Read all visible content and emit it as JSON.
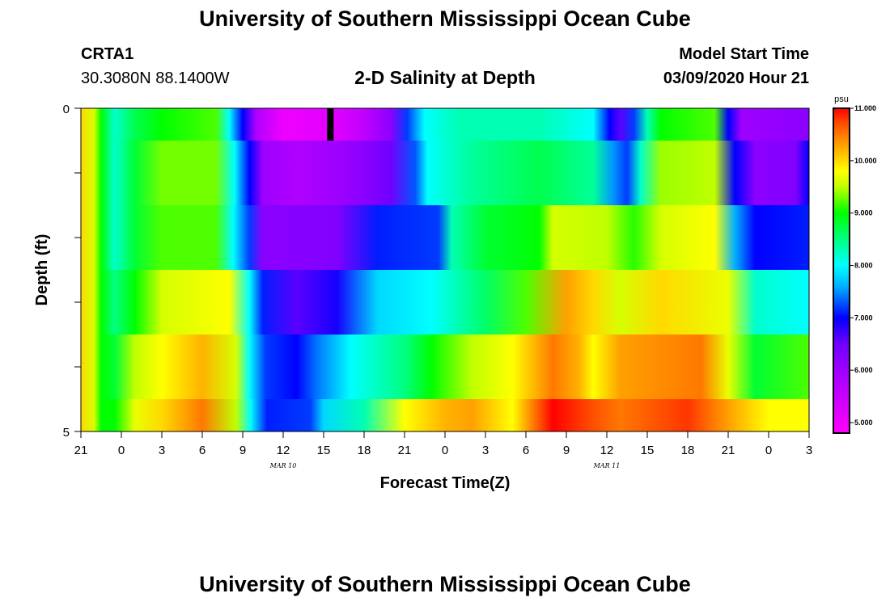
{
  "header": {
    "main_title": "University of Southern Mississippi Ocean Cube",
    "footer_title": "University of Southern Mississippi Ocean Cube",
    "station_id": "CRTA1",
    "station_coords": "30.3080N 88.1400W",
    "plot_title": "2-D Salinity at Depth",
    "model_start_label": "Model Start Time",
    "model_start_value": "03/09/2020 Hour 21"
  },
  "chart_data": {
    "type": "heatmap",
    "title": "2-D Salinity at Depth",
    "xlabel": "Forecast Time(Z)",
    "ylabel": "Depth (ft)",
    "x_tick_labels": [
      "21",
      "0",
      "3",
      "6",
      "9",
      "12",
      "15",
      "18",
      "21",
      "0",
      "3",
      "6",
      "9",
      "12",
      "15",
      "18",
      "21",
      "0",
      "3"
    ],
    "x_date_labels": [
      {
        "text": "MAR  10",
        "at_tick": 5
      },
      {
        "text": "MAR  11",
        "at_tick": 13
      }
    ],
    "y_tick_labels": {
      "top": "0",
      "bottom": "5"
    },
    "ylim": [
      0,
      5
    ],
    "forecast_hours": [
      0,
      54
    ],
    "colorbar": {
      "unit": "psu",
      "min": 4.8,
      "max": 11.0,
      "tick_labels": [
        "11.000",
        "10.000",
        "9.000",
        "8.000",
        "7.000",
        "6.000",
        "5.000"
      ],
      "tick_values": [
        11,
        10,
        9,
        8,
        7,
        6,
        5
      ],
      "stops": [
        {
          "value": 4.8,
          "color": "#ff00ff"
        },
        {
          "value": 5.8,
          "color": "#b000ff"
        },
        {
          "value": 6.5,
          "color": "#7000ff"
        },
        {
          "value": 7.0,
          "color": "#0000ff"
        },
        {
          "value": 7.6,
          "color": "#00b0ff"
        },
        {
          "value": 8.0,
          "color": "#00ffff"
        },
        {
          "value": 8.5,
          "color": "#00ff80"
        },
        {
          "value": 9.0,
          "color": "#00ff00"
        },
        {
          "value": 9.5,
          "color": "#c0ff00"
        },
        {
          "value": 9.8,
          "color": "#ffff00"
        },
        {
          "value": 10.3,
          "color": "#ffa000"
        },
        {
          "value": 10.7,
          "color": "#ff5000"
        },
        {
          "value": 11.0,
          "color": "#ff0000"
        }
      ]
    },
    "depth_rows": [
      {
        "depth_range": [
          0.0,
          0.5
        ],
        "knots": [
          [
            0,
            10
          ],
          [
            1,
            9.6
          ],
          [
            1.5,
            9.0
          ],
          [
            2.5,
            8.2
          ],
          [
            4,
            8.7
          ],
          [
            6,
            9.0
          ],
          [
            10,
            9.2
          ],
          [
            11,
            8.0
          ],
          [
            12,
            7.0
          ],
          [
            13,
            5.8
          ],
          [
            15,
            5.0
          ],
          [
            19,
            5.2
          ],
          [
            21,
            5.6
          ],
          [
            23,
            6.2
          ],
          [
            24.2,
            7.2
          ],
          [
            25.5,
            8.0
          ],
          [
            28,
            8.3
          ],
          [
            34,
            8.3
          ],
          [
            38,
            8.0
          ],
          [
            39.2,
            7.0
          ],
          [
            40,
            6.6
          ],
          [
            41,
            7.2
          ],
          [
            42,
            8.3
          ],
          [
            43,
            9.0
          ],
          [
            47,
            9.2
          ],
          [
            48,
            7.0
          ],
          [
            49,
            6.0
          ],
          [
            54,
            6.2
          ]
        ]
      },
      {
        "depth_range": [
          0.5,
          1.5
        ],
        "knots": [
          [
            0,
            10
          ],
          [
            1,
            9.6
          ],
          [
            1.5,
            9.0
          ],
          [
            2.5,
            8.2
          ],
          [
            4,
            8.8
          ],
          [
            6,
            9.3
          ],
          [
            10,
            9.3
          ],
          [
            11.4,
            8.0
          ],
          [
            12.5,
            7.0
          ],
          [
            13.5,
            6.0
          ],
          [
            16,
            5.8
          ],
          [
            19,
            6.0
          ],
          [
            21,
            6.2
          ],
          [
            23,
            6.5
          ],
          [
            24.8,
            7.3
          ],
          [
            25.7,
            8.0
          ],
          [
            29,
            8.4
          ],
          [
            34,
            8.7
          ],
          [
            38,
            8.4
          ],
          [
            39.5,
            7.5
          ],
          [
            40.5,
            7.2
          ],
          [
            41.5,
            8.2
          ],
          [
            43,
            9.4
          ],
          [
            47,
            9.5
          ],
          [
            48.5,
            7.0
          ],
          [
            50,
            6.2
          ],
          [
            53,
            6.3
          ],
          [
            54,
            7.0
          ]
        ]
      },
      {
        "depth_range": [
          1.5,
          2.5
        ],
        "knots": [
          [
            0,
            10
          ],
          [
            1,
            9.6
          ],
          [
            1.5,
            9.0
          ],
          [
            2.5,
            8.2
          ],
          [
            4,
            8.8
          ],
          [
            6,
            9.2
          ],
          [
            10,
            9.2
          ],
          [
            11.3,
            8.0
          ],
          [
            12.5,
            7.2
          ],
          [
            13.5,
            6.2
          ],
          [
            19,
            6.3
          ],
          [
            22,
            7.1
          ],
          [
            26.5,
            7.2
          ],
          [
            27.5,
            8.3
          ],
          [
            30,
            8.8
          ],
          [
            34,
            9.0
          ],
          [
            35,
            9.6
          ],
          [
            39,
            9.5
          ],
          [
            41,
            9.1
          ],
          [
            43,
            9.6
          ],
          [
            47,
            9.8
          ],
          [
            48.5,
            7.6
          ],
          [
            50,
            7.0
          ],
          [
            54,
            7.1
          ]
        ]
      },
      {
        "depth_range": [
          2.5,
          3.5
        ],
        "knots": [
          [
            0,
            10
          ],
          [
            1,
            9.6
          ],
          [
            1.5,
            9.0
          ],
          [
            2.5,
            8.5
          ],
          [
            4,
            9.0
          ],
          [
            6,
            9.6
          ],
          [
            11,
            9.8
          ],
          [
            12.5,
            8.0
          ],
          [
            13.5,
            7.1
          ],
          [
            16,
            6.6
          ],
          [
            19,
            6.9
          ],
          [
            22,
            7.8
          ],
          [
            26,
            8.0
          ],
          [
            30,
            8.6
          ],
          [
            33,
            9.2
          ],
          [
            36,
            10.3
          ],
          [
            38,
            10.0
          ],
          [
            40,
            9.6
          ],
          [
            43,
            10.0
          ],
          [
            48,
            9.7
          ],
          [
            50,
            8.2
          ],
          [
            54,
            8.0
          ]
        ]
      },
      {
        "depth_range": [
          3.5,
          4.5
        ],
        "knots": [
          [
            0,
            10
          ],
          [
            1,
            9.6
          ],
          [
            1.5,
            9.0
          ],
          [
            2.5,
            8.8
          ],
          [
            4,
            9.5
          ],
          [
            6,
            9.8
          ],
          [
            9,
            10.2
          ],
          [
            11.5,
            9.6
          ],
          [
            12.5,
            8.0
          ],
          [
            13.7,
            7.2
          ],
          [
            16,
            7.0
          ],
          [
            17.5,
            7.4
          ],
          [
            20,
            8.0
          ],
          [
            24,
            8.5
          ],
          [
            26,
            9.0
          ],
          [
            29,
            9.5
          ],
          [
            32,
            9.8
          ],
          [
            35,
            10.5
          ],
          [
            37,
            10.2
          ],
          [
            38,
            9.8
          ],
          [
            40,
            10.3
          ],
          [
            46,
            10.5
          ],
          [
            48,
            9.7
          ],
          [
            50,
            8.8
          ],
          [
            54,
            9.2
          ]
        ]
      },
      {
        "depth_range": [
          4.5,
          5.0
        ],
        "knots": [
          [
            0,
            10
          ],
          [
            1,
            9.6
          ],
          [
            1.5,
            9.0
          ],
          [
            2.5,
            9.0
          ],
          [
            4,
            9.7
          ],
          [
            6,
            10.0
          ],
          [
            9,
            10.5
          ],
          [
            11.5,
            9.5
          ],
          [
            12.6,
            8.0
          ],
          [
            13.8,
            7.1
          ],
          [
            17,
            7.2
          ],
          [
            18,
            7.8
          ],
          [
            21,
            8.3
          ],
          [
            24,
            9.8
          ],
          [
            27,
            10.2
          ],
          [
            29,
            10.3
          ],
          [
            32,
            9.8
          ],
          [
            35,
            11.0
          ],
          [
            38,
            10.7
          ],
          [
            40,
            10.5
          ],
          [
            45,
            10.8
          ],
          [
            48,
            10.3
          ],
          [
            51,
            9.8
          ],
          [
            54,
            9.8
          ]
        ]
      }
    ],
    "annotations": [
      {
        "type": "marker",
        "hour": 18.5,
        "depth_range": [
          0.0,
          0.5
        ],
        "color": "#000000"
      }
    ]
  }
}
